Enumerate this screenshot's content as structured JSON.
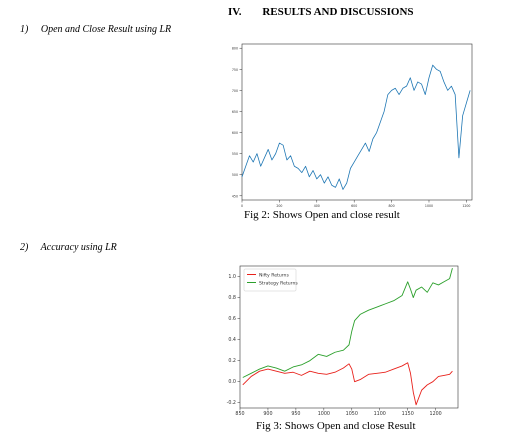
{
  "section": {
    "number": "IV.",
    "title": "RESULTS AND DISCUSSIONS"
  },
  "subsections": [
    {
      "index": "1)",
      "title": "Open and Close Result using LR"
    },
    {
      "index": "2)",
      "title": "Accuracy using LR"
    }
  ],
  "figures": [
    {
      "caption": "Fig 2: Shows Open and close result"
    },
    {
      "caption": "Fig 3: Shows Open and close Result"
    }
  ],
  "chart_data": [
    {
      "type": "line",
      "title": "",
      "xlabel": "",
      "ylabel": "",
      "xlim": [
        0,
        1230
      ],
      "ylim": [
        440,
        810
      ],
      "xticks": [
        0,
        200,
        400,
        600,
        800,
        1000,
        1200
      ],
      "yticks": [
        450,
        500,
        550,
        600,
        650,
        700,
        750,
        800
      ],
      "color": "#1f77b4",
      "series": [
        {
          "x": [
            0,
            20,
            40,
            60,
            80,
            100,
            120,
            140,
            160,
            180,
            200,
            220,
            240,
            260,
            280,
            300,
            320,
            340,
            360,
            380,
            400,
            420,
            440,
            460,
            480,
            500,
            520,
            540,
            560,
            580,
            600,
            620,
            640,
            660,
            680,
            700,
            720,
            740,
            760,
            780,
            800,
            820,
            840,
            860,
            880,
            900,
            920,
            940,
            960,
            980,
            1000,
            1020,
            1040,
            1060,
            1080,
            1100,
            1120,
            1140,
            1160,
            1180,
            1200,
            1220
          ],
          "y": [
            495,
            520,
            545,
            530,
            550,
            520,
            540,
            560,
            535,
            550,
            575,
            570,
            535,
            545,
            520,
            515,
            505,
            520,
            495,
            510,
            490,
            500,
            480,
            495,
            475,
            470,
            490,
            465,
            480,
            515,
            530,
            545,
            560,
            575,
            555,
            585,
            600,
            625,
            650,
            690,
            700,
            705,
            690,
            705,
            710,
            730,
            700,
            720,
            715,
            690,
            730,
            760,
            750,
            745,
            720,
            700,
            710,
            690,
            540,
            640,
            670,
            700
          ]
        }
      ]
    },
    {
      "type": "line",
      "title": "",
      "xlabel": "",
      "ylabel": "",
      "xlim": [
        850,
        1240
      ],
      "ylim": [
        -0.25,
        1.1
      ],
      "xticks": [
        850,
        900,
        950,
        1000,
        1050,
        1100,
        1150,
        1200
      ],
      "yticks": [
        -0.2,
        0.0,
        0.2,
        0.4,
        0.6,
        0.8,
        1.0
      ],
      "legend": {
        "position": "top-left"
      },
      "series": [
        {
          "name": "Nifty Returns",
          "color": "#e8211b",
          "x": [
            855,
            870,
            885,
            900,
            915,
            930,
            945,
            960,
            975,
            990,
            1005,
            1020,
            1035,
            1045,
            1050,
            1055,
            1065,
            1080,
            1095,
            1110,
            1125,
            1140,
            1150,
            1155,
            1160,
            1165,
            1175,
            1185,
            1195,
            1205,
            1215,
            1225,
            1230
          ],
          "y": [
            -0.03,
            0.05,
            0.1,
            0.12,
            0.1,
            0.08,
            0.09,
            0.06,
            0.1,
            0.08,
            0.07,
            0.09,
            0.13,
            0.17,
            0.12,
            0.0,
            0.02,
            0.07,
            0.08,
            0.09,
            0.12,
            0.15,
            0.18,
            0.08,
            -0.1,
            -0.22,
            -0.08,
            -0.03,
            0.0,
            0.05,
            0.06,
            0.07,
            0.1
          ]
        },
        {
          "name": "Strategy Returns",
          "color": "#2ca02c",
          "x": [
            855,
            870,
            885,
            900,
            915,
            930,
            945,
            960,
            975,
            990,
            1005,
            1020,
            1035,
            1045,
            1050,
            1055,
            1065,
            1080,
            1095,
            1110,
            1125,
            1140,
            1150,
            1155,
            1160,
            1165,
            1175,
            1185,
            1195,
            1205,
            1215,
            1225,
            1230
          ],
          "y": [
            0.04,
            0.08,
            0.12,
            0.15,
            0.13,
            0.1,
            0.14,
            0.16,
            0.2,
            0.26,
            0.24,
            0.28,
            0.3,
            0.35,
            0.48,
            0.58,
            0.64,
            0.68,
            0.71,
            0.74,
            0.77,
            0.82,
            0.95,
            0.88,
            0.8,
            0.87,
            0.9,
            0.85,
            0.94,
            0.92,
            0.95,
            0.98,
            1.08
          ]
        }
      ]
    }
  ]
}
